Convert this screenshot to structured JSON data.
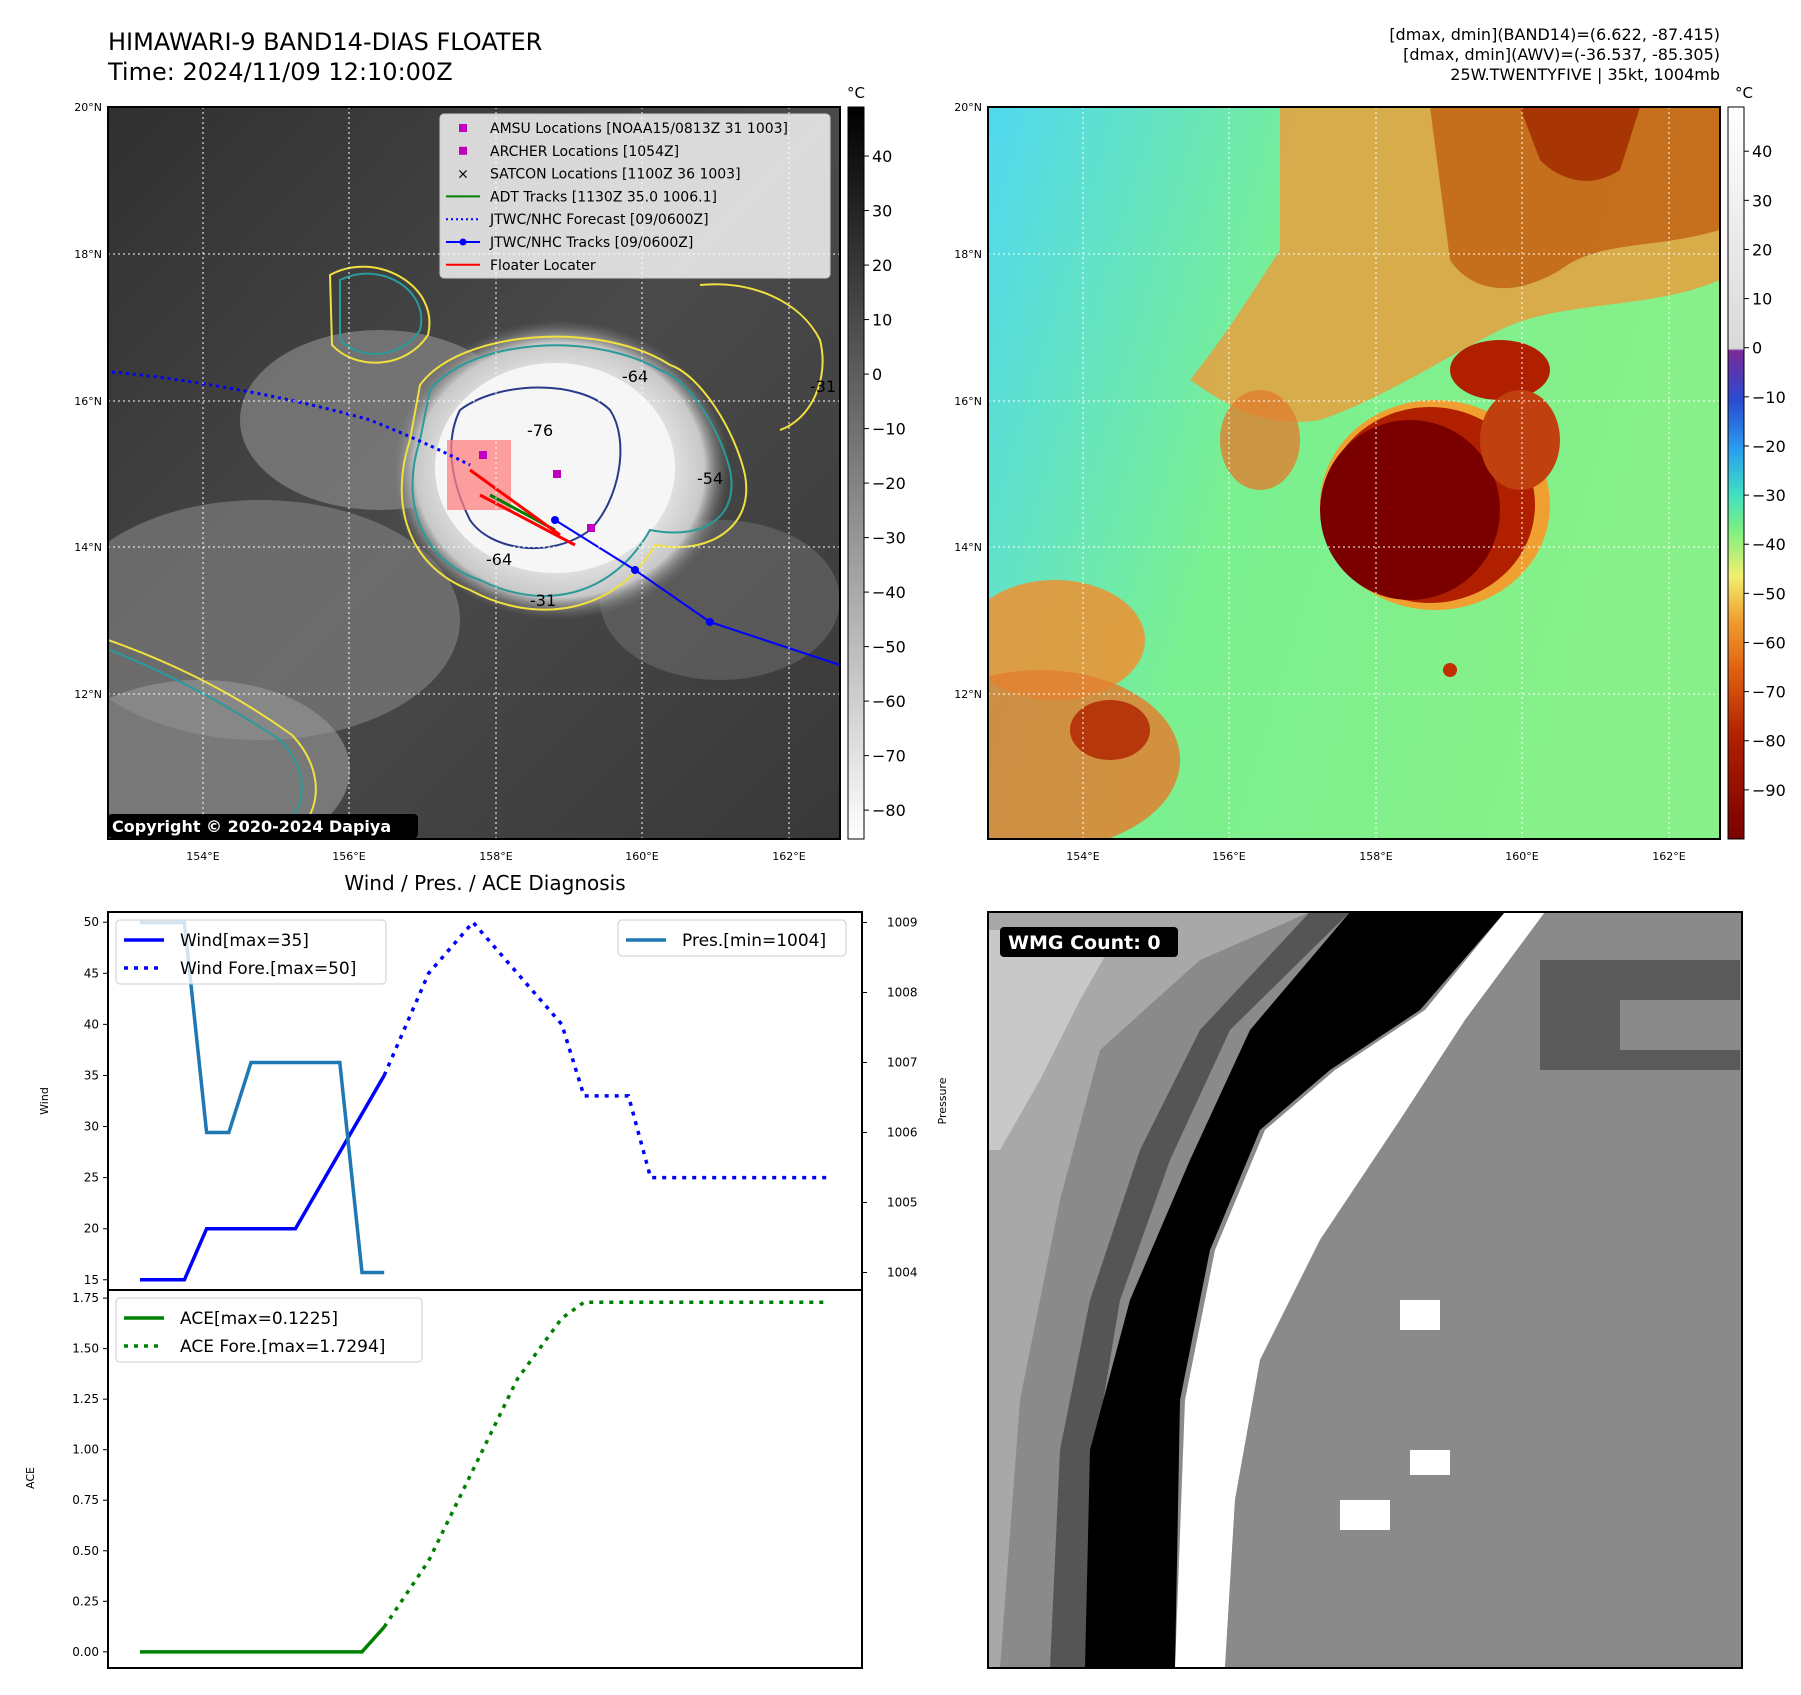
{
  "header": {
    "title": "HIMAWARI-9 BAND14-DIAS FLOATER",
    "time": "Time: 2024/11/09 12:10:00Z",
    "stats_band14": "[dmax, dmin](BAND14)=(6.622, -87.415)",
    "stats_awv": "[dmax, dmin](AWV)=(-36.537, -85.305)",
    "storm_info": "25W.TWENTYFIVE | 35kt, 1004mb"
  },
  "map": {
    "lat_labels": [
      "20°N",
      "18°N",
      "16°N",
      "14°N",
      "12°N"
    ],
    "lon_labels": [
      "154°E",
      "156°E",
      "158°E",
      "160°E",
      "162°E"
    ],
    "copyright": "Copyright © 2020-2024 Dapiya",
    "contour_labels": [
      "-64",
      "-76",
      "-64",
      "-31",
      "-54",
      "-31"
    ],
    "legend": [
      {
        "label": "AMSU Locations [NOAA15/0813Z 31 1003]",
        "color": "#c000c0",
        "marker": "square"
      },
      {
        "label": "ARCHER Locations [1054Z]",
        "color": "#c000c0",
        "marker": "square"
      },
      {
        "label": "SATCON Locations [1100Z 36 1003]",
        "color": "#00c0c0",
        "marker": "x"
      },
      {
        "label": "ADT Tracks [1130Z 35.0 1006.1]",
        "color": "#008000",
        "marker": "line"
      },
      {
        "label": "JTWC/NHC Forecast [09/0600Z]",
        "color": "#0000ff",
        "marker": "dotted"
      },
      {
        "label": "JTWC/NHC Tracks [09/0600Z]",
        "color": "#0000ff",
        "marker": "line-dot"
      },
      {
        "label": "Floater Locater",
        "color": "#ff0000",
        "marker": "line"
      }
    ],
    "colorbar_gray": {
      "unit": "°C",
      "ticks": [
        "40",
        "30",
        "20",
        "10",
        "0",
        "−10",
        "−20",
        "−30",
        "−40",
        "−50",
        "−60",
        "−70",
        "−80"
      ]
    },
    "colorbar_color": {
      "unit": "°C",
      "ticks": [
        "40",
        "30",
        "20",
        "10",
        "0",
        "−10",
        "−20",
        "−30",
        "−40",
        "−50",
        "−60",
        "−70",
        "−80",
        "−90"
      ]
    }
  },
  "wmg": {
    "label": "WMG Count: 0"
  },
  "chart_data": [
    {
      "type": "line",
      "title": "Wind / Pres. / ACE Diagnosis",
      "ylabel": "Wind",
      "ylabel_right": "Pressure",
      "ylim": [
        14,
        51
      ],
      "ylim_right": [
        1003.75,
        1009.15
      ],
      "yticks": [
        15,
        20,
        25,
        30,
        35,
        40,
        45,
        50
      ],
      "yticks_right": [
        1004,
        1005,
        1006,
        1007,
        1008,
        1009
      ],
      "x": [
        0,
        1,
        2,
        3,
        4,
        5,
        6,
        7,
        8,
        9,
        10,
        11,
        12,
        13,
        14,
        15,
        16,
        17,
        18,
        19,
        20,
        21,
        22,
        23,
        24,
        25,
        26,
        27,
        28,
        29,
        30,
        31
      ],
      "series": [
        {
          "name": "Wind[max=35]",
          "style": "solid",
          "color": "#0000ff",
          "x": [
            0,
            2,
            3,
            7,
            11
          ],
          "values": [
            15,
            15,
            20,
            20,
            35
          ]
        },
        {
          "name": "Wind Fore.[max=50]",
          "style": "dotted",
          "color": "#0000ff",
          "x": [
            11,
            13,
            15,
            17,
            19,
            20,
            22,
            23,
            31
          ],
          "values": [
            35,
            45,
            50,
            45,
            40,
            33,
            33,
            25,
            25
          ]
        },
        {
          "name": "Pres.[min=1004]",
          "style": "solid",
          "color": "#1f77b4",
          "axis": "right",
          "x": [
            0,
            2,
            3,
            4,
            5,
            9,
            10,
            11
          ],
          "values": [
            1009,
            1009,
            1006,
            1006,
            1007,
            1007,
            1004,
            1004
          ]
        }
      ]
    },
    {
      "type": "line",
      "ylabel": "ACE",
      "ylim": [
        -0.08,
        1.79
      ],
      "yticks": [
        "0.00",
        "0.25",
        "0.50",
        "0.75",
        "1.00",
        "1.25",
        "1.50",
        "1.75"
      ],
      "series": [
        {
          "name": "ACE[max=0.1225]",
          "style": "solid",
          "color": "#008000",
          "x": [
            0,
            10,
            11
          ],
          "values": [
            0,
            0,
            0.1225
          ]
        },
        {
          "name": "ACE Fore.[max=1.7294]",
          "style": "dotted",
          "color": "#008000",
          "x": [
            11,
            13,
            15,
            17,
            19,
            20,
            31
          ],
          "values": [
            0.1225,
            0.45,
            0.9,
            1.35,
            1.65,
            1.7294,
            1.7294
          ]
        }
      ]
    }
  ]
}
